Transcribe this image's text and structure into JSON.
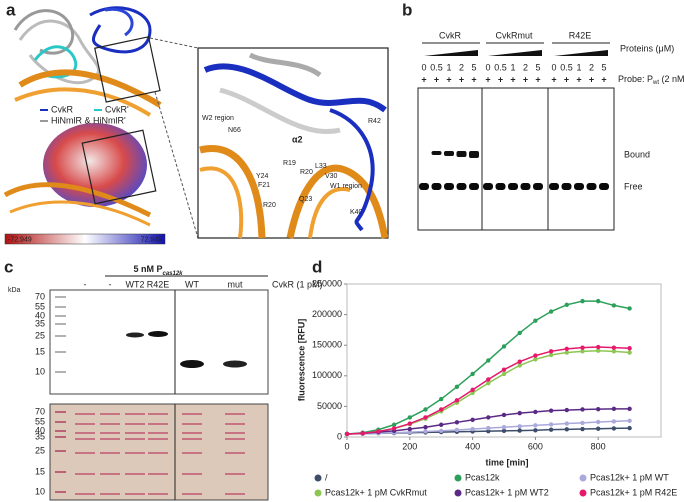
{
  "panels": {
    "a": {
      "label": "a",
      "legend": [
        "CvkR",
        "CvkR'",
        "HiNmlR & HiNmlR'"
      ],
      "scale": [
        "-72.949",
        "72.949"
      ],
      "residues": [
        "W2 region",
        "N66",
        "α2",
        "R42",
        "Y24",
        "F21",
        "R19",
        "L33",
        "V30",
        "W1 region",
        "R20",
        "Q23",
        "R20",
        "K40"
      ]
    },
    "b": {
      "label": "b",
      "groups": [
        {
          "name": "CvkR",
          "lanes": [
            "0",
            "0.5",
            "1",
            "2",
            "5"
          ]
        },
        {
          "name": "CvkRmut",
          "lanes": [
            "0",
            "0.5",
            "1",
            "2",
            "5"
          ]
        },
        {
          "name": "R42E",
          "lanes": [
            "0",
            "0.5",
            "1",
            "2",
            "5"
          ]
        }
      ],
      "proteins": "Proteins (μM)",
      "probe_sign": "+",
      "probe": [
        "Probe: P",
        "wt",
        " (2 nM)"
      ],
      "bound": "Bound",
      "free": "Free"
    },
    "c": {
      "label": "c",
      "header": [
        "5 nM P",
        "cas12k"
      ],
      "cvkr": "CvkR (1 pM)",
      "lanes": [
        "-",
        "-",
        "WT2",
        "R42E",
        "WT",
        "mut"
      ],
      "kda": "kDa",
      "ladder_top": [
        "70",
        "55",
        "40",
        "35",
        "25",
        "15",
        "10"
      ],
      "ladder_bottom": [
        "70",
        "55",
        "40",
        "35",
        "25",
        "15",
        "10"
      ]
    },
    "d": {
      "label": "d"
    }
  },
  "chart_data": {
    "type": "line",
    "x_label": "time [min]",
    "y_label": "fluorescence [RFU]",
    "x": [
      0,
      50,
      100,
      150,
      200,
      250,
      300,
      350,
      400,
      450,
      500,
      550,
      600,
      650,
      700,
      750,
      800,
      850,
      900
    ],
    "xlim": [
      0,
      1000
    ],
    "xticks": [
      0,
      200,
      400,
      600,
      800
    ],
    "ylim": [
      0,
      250000
    ],
    "yticks": [
      0,
      50000,
      100000,
      150000,
      200000,
      250000
    ],
    "series": [
      {
        "name": "/",
        "color": "#3d4d6a",
        "values": [
          5000,
          5500,
          6000,
          6500,
          7000,
          7500,
          8000,
          8500,
          9000,
          9500,
          10000,
          10500,
          11000,
          12000,
          12500,
          13000,
          13500,
          14000,
          14500
        ]
      },
      {
        "name": "Pcas12k",
        "color": "#2ca05a",
        "values": [
          5000,
          7000,
          12000,
          20000,
          32000,
          45000,
          62000,
          82000,
          103000,
          125000,
          148000,
          170000,
          190000,
          205000,
          216000,
          222000,
          222000,
          215000,
          210000
        ]
      },
      {
        "name": "Pcas12k+ 1 pM WT",
        "color": "#a9a9dc",
        "values": [
          5000,
          5500,
          6000,
          7000,
          8000,
          9000,
          10000,
          11500,
          13000,
          14500,
          16000,
          17500,
          19000,
          20500,
          22000,
          23000,
          24500,
          25500,
          26500
        ]
      },
      {
        "name": "Pcas12k+ 1 pM CvkRmut",
        "color": "#8dc653",
        "values": [
          5000,
          6000,
          9000,
          14000,
          21000,
          30000,
          42000,
          56000,
          72000,
          88000,
          103000,
          117000,
          127000,
          134000,
          138000,
          140000,
          141000,
          140000,
          138000
        ]
      },
      {
        "name": "Pcas12k+ 1 pM WT2",
        "color": "#5b2a86",
        "values": [
          5000,
          6000,
          8000,
          10000,
          13000,
          16000,
          20000,
          24000,
          28000,
          32000,
          36000,
          39000,
          41000,
          43000,
          44000,
          45000,
          45500,
          46000,
          46000
        ]
      },
      {
        "name": "Pcas12k+ 1 pM R42E",
        "color": "#e6196b",
        "values": [
          5000,
          6000,
          9000,
          14000,
          22000,
          32000,
          45000,
          60000,
          77000,
          94000,
          110000,
          123000,
          133000,
          140000,
          144000,
          146000,
          147000,
          146000,
          145000
        ]
      }
    ]
  }
}
